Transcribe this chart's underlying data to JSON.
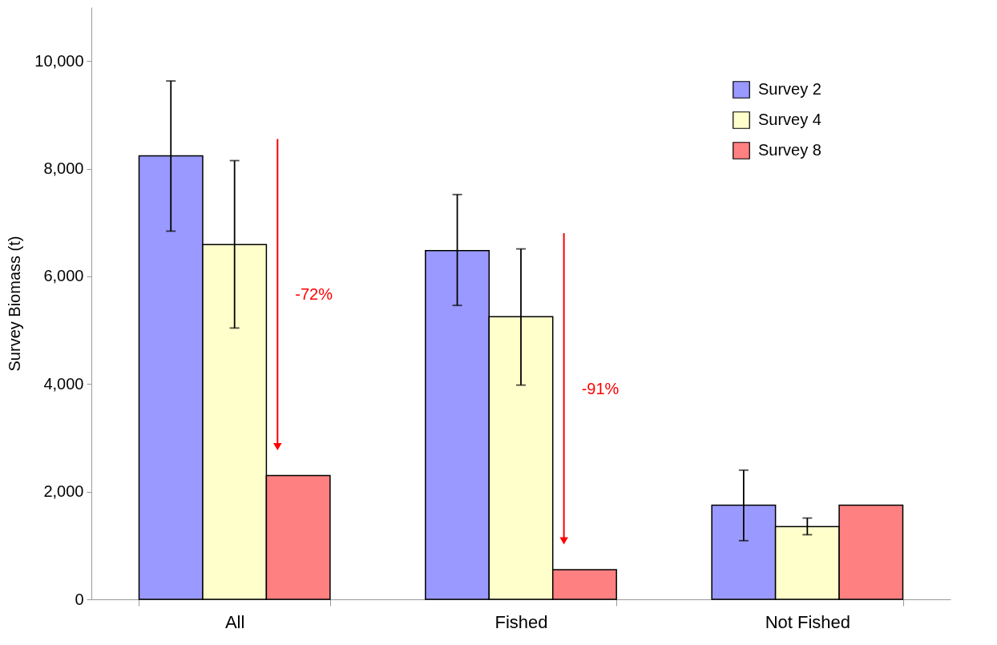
{
  "chart_data": {
    "type": "bar",
    "ylabel": "Survey Biomass (t)",
    "categories": [
      "All",
      "Fished",
      "Not Fished"
    ],
    "series": [
      {
        "name": "Survey 2",
        "color": "#9999ff",
        "values": [
          8240,
          6480,
          1750
        ],
        "errors": [
          [
            6840,
            9630
          ],
          [
            5460,
            7520
          ],
          [
            1090,
            2400
          ]
        ]
      },
      {
        "name": "Survey 4",
        "color": "#ffffcc",
        "values": [
          6590,
          5250,
          1350
        ],
        "errors": [
          [
            5040,
            8150
          ],
          [
            3980,
            6510
          ],
          [
            1200,
            1510
          ]
        ]
      },
      {
        "name": "Survey 8",
        "color": "#ff8080",
        "values": [
          2300,
          550,
          1750
        ],
        "errors": [
          null,
          null,
          null
        ]
      }
    ],
    "ylim": [
      0,
      11000
    ],
    "yticks": [
      0,
      {
        "value": 2000,
        "label": "2,000"
      },
      {
        "value": 4000,
        "label": "4,000"
      },
      {
        "value": 6000,
        "label": "6,000"
      },
      {
        "value": 8000,
        "label": "8,000"
      },
      {
        "value": 10000,
        "label": "10,000"
      }
    ],
    "grid": false,
    "legend": "top right",
    "annotations": [
      "-72%",
      "-91%"
    ]
  }
}
